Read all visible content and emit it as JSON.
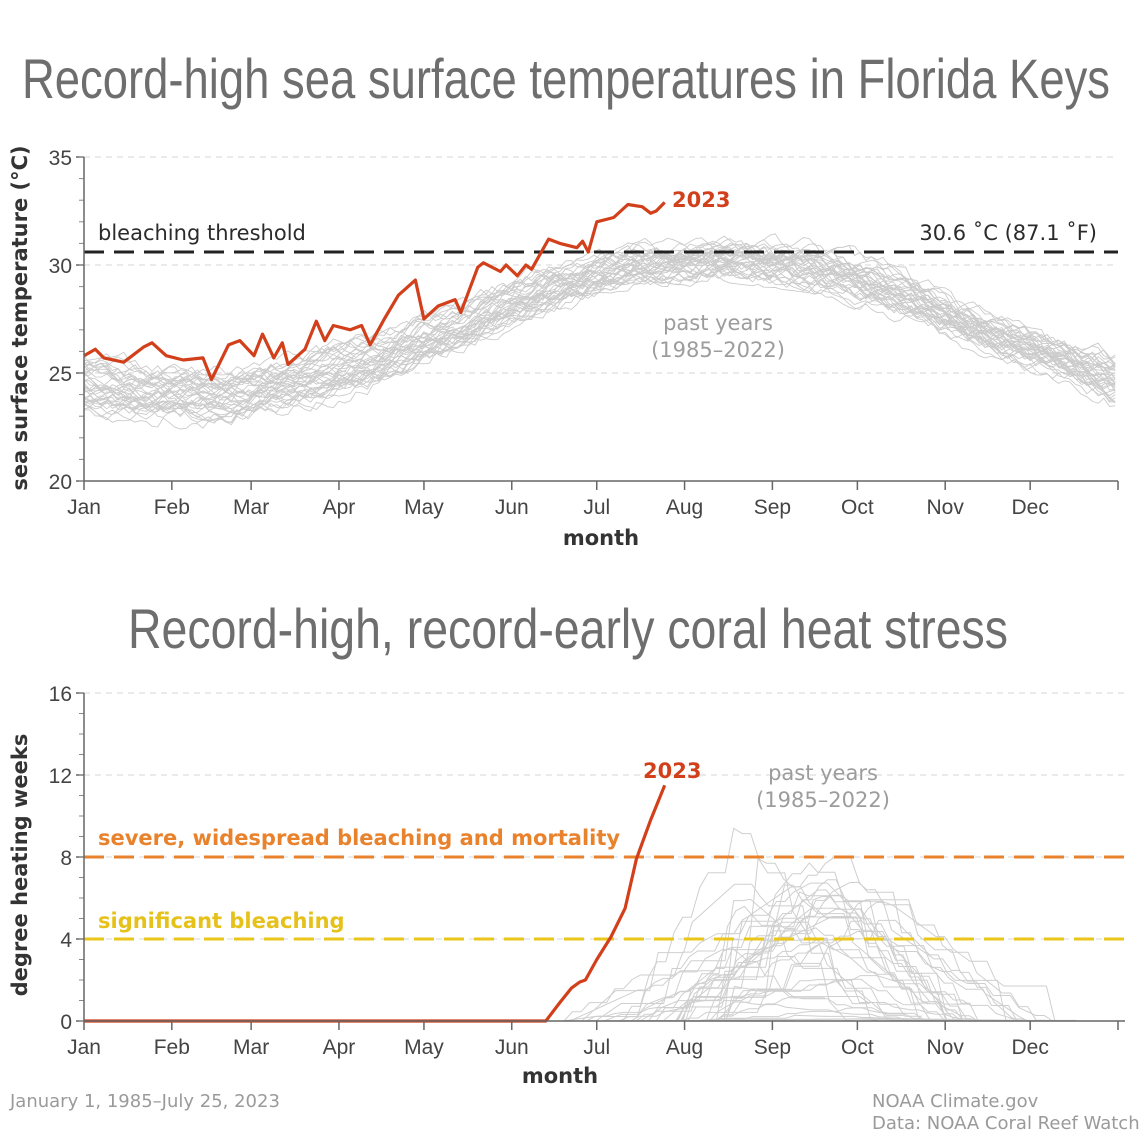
{
  "chart_data": [
    {
      "type": "line",
      "title": "Record-high sea surface temperatures in Florida Keys",
      "xlabel": "month",
      "ylabel": "sea surface temperature  (°C)",
      "x_ticks": [
        "Jan",
        "Feb",
        "Mar",
        "Apr",
        "May",
        "Jun",
        "Jul",
        "Aug",
        "Sep",
        "Oct",
        "Nov",
        "Dec"
      ],
      "y_ticks": [
        20,
        25,
        30,
        35
      ],
      "ylim": [
        20,
        35
      ],
      "grid": true,
      "threshold": {
        "value": 30.6,
        "label": "bleaching threshold",
        "value_label": "30.6 ˚C (87.1 ˚F)",
        "color": "#222222"
      },
      "series": [
        {
          "name": "2023",
          "color": "#d23f1b",
          "points": [
            [
              "2023-01-01",
              25.8
            ],
            [
              "2023-01-05",
              26.1
            ],
            [
              "2023-01-08",
              25.7
            ],
            [
              "2023-01-15",
              25.5
            ],
            [
              "2023-01-22",
              26.2
            ],
            [
              "2023-01-25",
              26.4
            ],
            [
              "2023-01-30",
              25.8
            ],
            [
              "2023-02-05",
              25.6
            ],
            [
              "2023-02-12",
              25.7
            ],
            [
              "2023-02-15",
              24.7
            ],
            [
              "2023-02-21",
              26.3
            ],
            [
              "2023-02-25",
              26.5
            ],
            [
              "2023-03-02",
              25.8
            ],
            [
              "2023-03-05",
              26.8
            ],
            [
              "2023-03-09",
              25.7
            ],
            [
              "2023-03-12",
              26.4
            ],
            [
              "2023-03-14",
              25.4
            ],
            [
              "2023-03-20",
              26.1
            ],
            [
              "2023-03-24",
              27.4
            ],
            [
              "2023-03-27",
              26.5
            ],
            [
              "2023-03-30",
              27.2
            ],
            [
              "2023-04-05",
              27.0
            ],
            [
              "2023-04-09",
              27.2
            ],
            [
              "2023-04-12",
              26.3
            ],
            [
              "2023-04-17",
              27.5
            ],
            [
              "2023-04-22",
              28.6
            ],
            [
              "2023-04-28",
              29.3
            ],
            [
              "2023-05-01",
              27.5
            ],
            [
              "2023-05-06",
              28.1
            ],
            [
              "2023-05-12",
              28.4
            ],
            [
              "2023-05-14",
              27.8
            ],
            [
              "2023-05-20",
              29.9
            ],
            [
              "2023-05-22",
              30.1
            ],
            [
              "2023-05-28",
              29.7
            ],
            [
              "2023-05-30",
              30.0
            ],
            [
              "2023-06-03",
              29.5
            ],
            [
              "2023-06-06",
              30.0
            ],
            [
              "2023-06-08",
              29.8
            ],
            [
              "2023-06-14",
              31.2
            ],
            [
              "2023-06-18",
              31.0
            ],
            [
              "2023-06-24",
              30.8
            ],
            [
              "2023-06-26",
              31.1
            ],
            [
              "2023-06-28",
              30.6
            ],
            [
              "2023-07-01",
              32.0
            ],
            [
              "2023-07-07",
              32.2
            ],
            [
              "2023-07-12",
              32.8
            ],
            [
              "2023-07-17",
              32.7
            ],
            [
              "2023-07-20",
              32.4
            ],
            [
              "2023-07-22",
              32.5
            ],
            [
              "2023-07-25",
              32.9
            ]
          ]
        },
        {
          "name": "past years",
          "years": "(1985–2022)",
          "color": "#c8c8c8",
          "monthly_band": [
            {
              "date": "01-01",
              "mean": 24.6,
              "low": 23.0,
              "high": 27.0
            },
            {
              "date": "01-15",
              "mean": 24.3,
              "low": 23.0,
              "high": 26.5
            },
            {
              "date": "02-15",
              "mean": 24.0,
              "low": 22.5,
              "high": 25.5
            },
            {
              "date": "03-15",
              "mean": 24.6,
              "low": 23.0,
              "high": 26.5
            },
            {
              "date": "04-15",
              "mean": 25.8,
              "low": 24.0,
              "high": 27.5
            },
            {
              "date": "05-15",
              "mean": 27.3,
              "low": 26.0,
              "high": 29.0
            },
            {
              "date": "06-15",
              "mean": 29.0,
              "low": 28.0,
              "high": 30.5
            },
            {
              "date": "07-15",
              "mean": 30.0,
              "low": 29.0,
              "high": 31.0
            },
            {
              "date": "08-15",
              "mean": 30.3,
              "low": 29.5,
              "high": 31.5
            },
            {
              "date": "09-15",
              "mean": 30.0,
              "low": 29.0,
              "high": 31.3
            },
            {
              "date": "10-15",
              "mean": 28.8,
              "low": 27.5,
              "high": 30.0
            },
            {
              "date": "11-15",
              "mean": 27.0,
              "low": 26.0,
              "high": 28.0
            },
            {
              "date": "12-15",
              "mean": 25.6,
              "low": 24.5,
              "high": 26.8
            },
            {
              "date": "12-31",
              "mean": 24.8,
              "low": 23.0,
              "high": 26.5
            }
          ]
        }
      ]
    },
    {
      "type": "line",
      "title": "Record-high, record-early coral heat stress",
      "xlabel": "month",
      "ylabel": "degree heating weeks",
      "x_ticks": [
        "Jan",
        "Feb",
        "Mar",
        "Apr",
        "May",
        "Jun",
        "Jul",
        "Aug",
        "Sep",
        "Oct",
        "Nov",
        "Dec"
      ],
      "y_ticks": [
        0,
        4,
        8,
        12,
        16
      ],
      "ylim": [
        0,
        16
      ],
      "grid": true,
      "thresholds": [
        {
          "value": 8,
          "label": "severe, widespread bleaching and mortality",
          "color": "#e9822c"
        },
        {
          "value": 4,
          "label": "significant bleaching",
          "color": "#e9c619"
        }
      ],
      "series": [
        {
          "name": "2023",
          "color": "#d23f1b",
          "points": [
            [
              "2023-01-01",
              0
            ],
            [
              "2023-06-13",
              0
            ],
            [
              "2023-06-18",
              0.9
            ],
            [
              "2023-06-22",
              1.6
            ],
            [
              "2023-06-25",
              1.9
            ],
            [
              "2023-06-27",
              2.0
            ],
            [
              "2023-07-01",
              3.0
            ],
            [
              "2023-07-06",
              4.1
            ],
            [
              "2023-07-11",
              5.5
            ],
            [
              "2023-07-15",
              7.9
            ],
            [
              "2023-07-20",
              9.8
            ],
            [
              "2023-07-25",
              11.5
            ]
          ]
        },
        {
          "name": "past years",
          "years": "(1985–2022)",
          "color": "#cccccc",
          "max_peak": 9.6,
          "season": {
            "onset": "06-15",
            "peak": "09-20",
            "end": "12-20"
          }
        }
      ]
    }
  ],
  "footer": {
    "date_range": "January 1, 1985–July 25, 2023",
    "credit": "NOAA Climate.gov",
    "source": "Data: NOAA Coral Reef Watch"
  }
}
